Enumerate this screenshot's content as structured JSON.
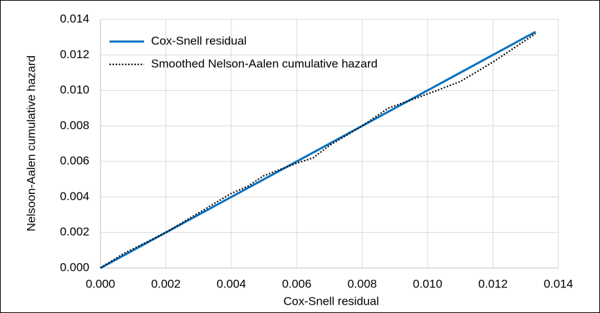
{
  "chart_data": {
    "type": "line",
    "x_label": "Cox-Snell residual",
    "y_label": "Nelsoon-Aalen cumulative hazard",
    "xlim": [
      0,
      0.014
    ],
    "ylim": [
      0,
      0.014
    ],
    "xticks": [
      {
        "value": 0,
        "label": "0.000"
      },
      {
        "value": 0.002,
        "label": "0.002"
      },
      {
        "value": 0.004,
        "label": "0.004"
      },
      {
        "value": 0.006,
        "label": "0.006"
      },
      {
        "value": 0.008,
        "label": "0.008"
      },
      {
        "value": 0.01,
        "label": "0.010"
      },
      {
        "value": 0.012,
        "label": "0.012"
      },
      {
        "value": 0.014,
        "label": "0.014"
      }
    ],
    "yticks": [
      {
        "value": 0,
        "label": "0.000"
      },
      {
        "value": 0.002,
        "label": "0.002"
      },
      {
        "value": 0.004,
        "label": "0.004"
      },
      {
        "value": 0.006,
        "label": "0.006"
      },
      {
        "value": 0.008,
        "label": "0.008"
      },
      {
        "value": 0.01,
        "label": "0.010"
      },
      {
        "value": 0.012,
        "label": "0.012"
      },
      {
        "value": 0.014,
        "label": "0.014"
      }
    ],
    "grid": true,
    "legend": "upper-left",
    "series": [
      {
        "name": "Cox-Snell residual",
        "color": "#0070c0",
        "style": "solid",
        "x": [
          0,
          0.0133
        ],
        "values": [
          0,
          0.0133
        ]
      },
      {
        "name": "Smoothed Nelson-Aalen cumulative hazard",
        "color": "#000000",
        "style": "dotted",
        "x": [
          0,
          0.0007,
          0.002,
          0.003,
          0.004,
          0.0045,
          0.005,
          0.006,
          0.0065,
          0.007,
          0.008,
          0.0088,
          0.01,
          0.011,
          0.012,
          0.0133
        ],
        "values": [
          0,
          0.0008,
          0.002,
          0.0031,
          0.0042,
          0.0046,
          0.0052,
          0.0059,
          0.0062,
          0.0069,
          0.008,
          0.009,
          0.0098,
          0.0105,
          0.0116,
          0.0132
        ]
      }
    ]
  }
}
